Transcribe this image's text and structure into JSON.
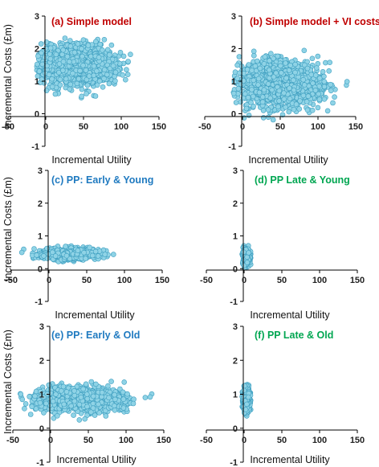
{
  "figure": {
    "ylabel": "Incremental Costs (£m)",
    "xlabel": "Incremental Utility",
    "colors": {
      "marker_fill": "#8fd3e6",
      "marker_edge": "#3f9fc0",
      "axis": "#000000"
    }
  },
  "chart_data": [
    {
      "type": "scatter",
      "id": "a",
      "title": "(a) Simple model",
      "title_color": "#c00000",
      "xlabel": "Incremental Utility",
      "ylabel": "Incremental Costs (£m)",
      "xlim": [
        -50,
        150
      ],
      "ylim": [
        -1,
        3
      ],
      "x_ticks": [
        -50,
        0,
        50,
        100,
        150
      ],
      "y_ticks": [
        -1,
        0,
        1,
        2,
        3
      ],
      "series": [
        {
          "cloud": {
            "x_center": 40,
            "x_sd": 27,
            "x_range": [
              -12,
              138
            ],
            "y_center": 1.5,
            "y_sd": 0.3,
            "y_range": [
              0.02,
              2.75
            ],
            "n": 1400
          }
        }
      ]
    },
    {
      "type": "scatter",
      "id": "b",
      "title": "(b) Simple model + VI costs",
      "title_color": "#c00000",
      "xlabel": "Incremental Utility",
      "ylabel": "",
      "xlim": [
        -50,
        150
      ],
      "ylim": [
        -1,
        3
      ],
      "x_ticks": [
        -50,
        0,
        50,
        100,
        150
      ],
      "y_ticks": [
        -1,
        0,
        1,
        2,
        3
      ],
      "series": [
        {
          "cloud": {
            "x_center": 48,
            "x_sd": 28,
            "x_range": [
              -12,
              142
            ],
            "y_center": 0.9,
            "y_sd": 0.35,
            "y_range": [
              -0.3,
              2.1
            ],
            "n": 1400
          }
        }
      ]
    },
    {
      "type": "scatter",
      "id": "c",
      "title": "(c) PP: Early & Young",
      "title_color": "#1f7ac0",
      "xlabel": "Incremental Utility",
      "ylabel": "Incremental Costs (£m)",
      "xlim": [
        -50,
        150
      ],
      "ylim": [
        -1,
        3
      ],
      "x_ticks": [
        -50,
        0,
        50,
        100,
        150
      ],
      "y_ticks": [
        -1,
        0,
        1,
        2,
        3
      ],
      "series": [
        {
          "cloud": {
            "x_center": 25,
            "x_sd": 18,
            "x_range": [
              -40,
              108
            ],
            "y_center": 0.45,
            "y_sd": 0.08,
            "y_range": [
              0.15,
              0.75
            ],
            "n": 1200
          }
        }
      ]
    },
    {
      "type": "scatter",
      "id": "d",
      "title": "(d) PP Late & Young",
      "title_color": "#00a651",
      "xlabel": "Incremental Utility",
      "ylabel": "",
      "xlim": [
        -50,
        150
      ],
      "ylim": [
        -1,
        3
      ],
      "x_ticks": [
        -50,
        0,
        50,
        100,
        150
      ],
      "y_ticks": [
        -1,
        0,
        1,
        2,
        3
      ],
      "series": [
        {
          "cloud": {
            "x_center": 3,
            "x_sd": 2.2,
            "x_range": [
              -3,
              9
            ],
            "y_center": 0.35,
            "y_sd": 0.12,
            "y_range": [
              0.02,
              0.72
            ],
            "n": 600
          }
        }
      ]
    },
    {
      "type": "scatter",
      "id": "e",
      "title": "(e) PP: Early & Old",
      "title_color": "#1f7ac0",
      "xlabel": "Incremental Utility",
      "ylabel": "Incremental Costs (£m)",
      "xlim": [
        -50,
        150
      ],
      "ylim": [
        -1,
        3
      ],
      "x_ticks": [
        -50,
        0,
        50,
        100,
        150
      ],
      "y_ticks": [
        -1,
        0,
        1,
        2,
        3
      ],
      "series": [
        {
          "cloud": {
            "x_center": 40,
            "x_sd": 28,
            "x_range": [
              -42,
              145
            ],
            "y_center": 0.85,
            "y_sd": 0.18,
            "y_range": [
              0.1,
              1.55
            ],
            "n": 1400
          }
        }
      ]
    },
    {
      "type": "scatter",
      "id": "f",
      "title": "(f) PP Late & Old",
      "title_color": "#00a651",
      "xlabel": "Incremental Utility",
      "ylabel": "",
      "xlim": [
        -50,
        150
      ],
      "ylim": [
        -1,
        3
      ],
      "x_ticks": [
        -50,
        0,
        50,
        100,
        150
      ],
      "y_ticks": [
        -1,
        0,
        1,
        2,
        3
      ],
      "series": [
        {
          "cloud": {
            "x_center": 3,
            "x_sd": 2.2,
            "x_range": [
              -3,
              9
            ],
            "y_center": 0.85,
            "y_sd": 0.18,
            "y_range": [
              0.35,
              1.3
            ],
            "n": 600
          }
        }
      ]
    }
  ]
}
